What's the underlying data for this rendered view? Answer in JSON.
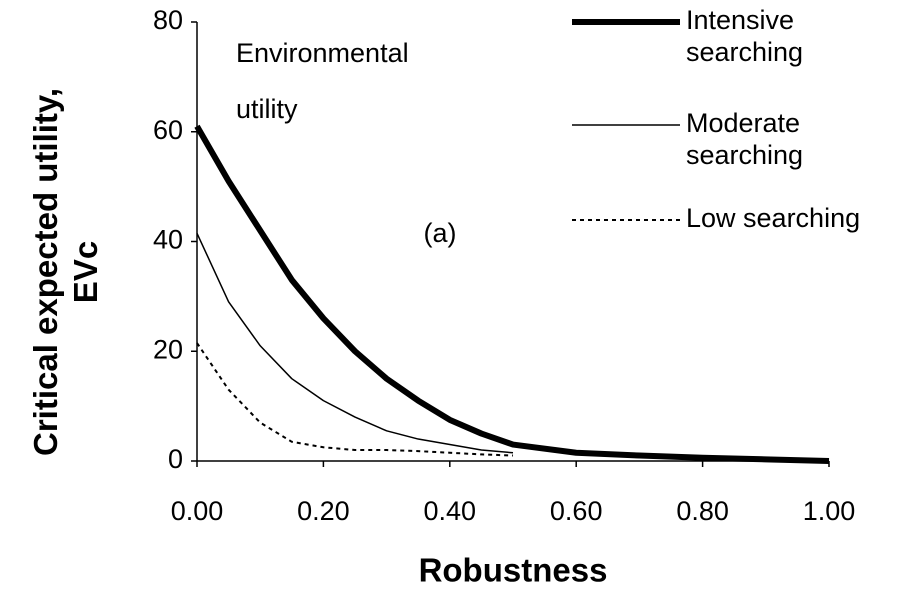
{
  "chart_data": {
    "type": "line",
    "annotations": [
      "Environmental\nutility",
      "(a)"
    ],
    "x_label": "Robustness",
    "y_label": "Critical expected utility,\nEVc",
    "x": [
      0,
      0.05,
      0.1,
      0.15,
      0.2,
      0.25,
      0.3,
      0.35,
      0.4,
      0.45,
      0.5,
      0.6,
      0.7,
      0.8,
      0.9,
      1.0
    ],
    "series": [
      {
        "name": "Intensive\nsearching",
        "color": "#000",
        "width": 6,
        "dash": "none",
        "values": [
          61,
          51,
          42,
          33,
          26,
          20,
          15,
          11,
          7.5,
          5,
          3,
          1.5,
          1,
          0.6,
          0.3,
          0
        ]
      },
      {
        "name": "Moderate\nsearching",
        "color": "#000",
        "width": 1.5,
        "dash": "none",
        "values": [
          41.5,
          29,
          21,
          15,
          11,
          8,
          5.5,
          4,
          3,
          2,
          1.5,
          null,
          null,
          null,
          null,
          null
        ]
      },
      {
        "name": "Low searching",
        "color": "#000",
        "width": 2,
        "dash": "4 4",
        "values": [
          21.5,
          13,
          7,
          3.5,
          2.5,
          2,
          2,
          1.8,
          1.5,
          1.2,
          1,
          null,
          null,
          null,
          null,
          null
        ]
      }
    ],
    "xlim": [
      0,
      1
    ],
    "ylim": [
      0,
      80
    ],
    "xticks": [
      {
        "value": 0,
        "label": "0.00"
      },
      {
        "value": 0.2,
        "label": "0.20"
      },
      {
        "value": 0.4,
        "label": "0.40"
      },
      {
        "value": 0.6,
        "label": "0.60"
      },
      {
        "value": 0.8,
        "label": "0.80"
      },
      {
        "value": 1,
        "label": "1.00"
      }
    ],
    "yticks": [
      0,
      20,
      40,
      60,
      80
    ],
    "grid": false,
    "legend": "upper right"
  }
}
